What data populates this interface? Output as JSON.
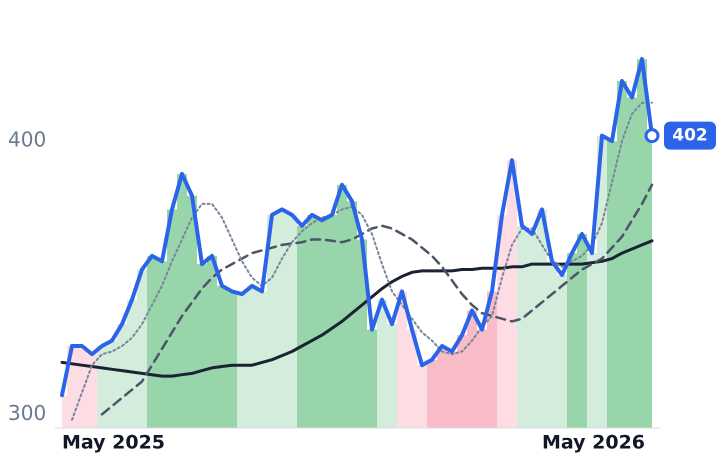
{
  "chart_data": {
    "type": "line",
    "categories": [
      "May 2025",
      null,
      null,
      null,
      null,
      null,
      null,
      null,
      null,
      null,
      null,
      null,
      null,
      null,
      null,
      null,
      null,
      null,
      null,
      null,
      null,
      null,
      null,
      null,
      null,
      null,
      null,
      null,
      null,
      null,
      null,
      null,
      null,
      null,
      null,
      null,
      null,
      null,
      null,
      null,
      null,
      null,
      null,
      null,
      null,
      null,
      null,
      null,
      "May 2026",
      null,
      null,
      null,
      null,
      null,
      null,
      null,
      null,
      null,
      null,
      null
    ],
    "series": [
      {
        "color": "#2b64e8",
        "style": "solid",
        "width": 4,
        "values": [
          307,
          325,
          325,
          322,
          325,
          327,
          333,
          342,
          353,
          358,
          356,
          375,
          388,
          380,
          355,
          358,
          347,
          345,
          344,
          347,
          345,
          373,
          375,
          373,
          369,
          373,
          371,
          373,
          384,
          378,
          364,
          331,
          342,
          333,
          345,
          331,
          318,
          320,
          325,
          323,
          329,
          338,
          331,
          345,
          373,
          393,
          369,
          366,
          375,
          356,
          351,
          359,
          366,
          359,
          402,
          400,
          422,
          416,
          430,
          402
        ]
      },
      {
        "color": "#7a8599",
        "style": "dotted",
        "width": 2,
        "values": [
          null,
          298,
          308,
          318,
          322,
          323,
          325,
          328,
          333,
          340,
          347,
          356,
          364,
          372,
          377,
          377,
          372,
          364,
          356,
          350,
          347,
          350,
          357,
          363,
          367,
          370,
          372,
          373,
          375,
          376,
          373,
          366,
          355,
          345,
          340,
          335,
          330,
          327,
          323,
          322,
          323,
          327,
          332,
          336,
          350,
          362,
          368,
          368,
          362,
          356,
          354,
          356,
          358,
          362,
          370,
          385,
          400,
          410,
          414,
          414
        ]
      },
      {
        "color": "#4a5568",
        "style": "dashed",
        "width": 2.5,
        "values": [
          null,
          null,
          null,
          null,
          300,
          303,
          306,
          309,
          312,
          318,
          324,
          330,
          336,
          341,
          346,
          350,
          353,
          355,
          357,
          359,
          360,
          361,
          362,
          362.5,
          363,
          364,
          364,
          363.5,
          363,
          364,
          366,
          368,
          369,
          368,
          366,
          364,
          361,
          358,
          354,
          349,
          344,
          340,
          337,
          336,
          335,
          334,
          335,
          338,
          341,
          344,
          347,
          350,
          353,
          355,
          357,
          361,
          365,
          371,
          377,
          384
        ]
      },
      {
        "color": "#1a2233",
        "style": "solid",
        "width": 3,
        "values": [
          319,
          318.5,
          318,
          317.5,
          317,
          316.5,
          316,
          315.5,
          315,
          314.5,
          314,
          314,
          314.5,
          315,
          316,
          317,
          317.5,
          318,
          318,
          318,
          319,
          320,
          321.5,
          323,
          325,
          327,
          329,
          331.5,
          334,
          337,
          340,
          343,
          346,
          348.5,
          350.5,
          352,
          352.5,
          352.5,
          352.5,
          352.5,
          353,
          353,
          353.5,
          353.5,
          353.5,
          354,
          354,
          355,
          355,
          355,
          355,
          355,
          355,
          355.5,
          356,
          357,
          359,
          360.5,
          362,
          363.5
        ]
      }
    ],
    "band_colors": [
      "#fddde3",
      "#fddde3",
      "#fddde3",
      "#fddde3",
      "#d4ecdc",
      "#d4ecdc",
      "#d4ecdc",
      "#d4ecdc",
      "#d4ecdc",
      "#98d5ab",
      "#98d5ab",
      "#98d5ab",
      "#98d5ab",
      "#98d5ab",
      "#98d5ab",
      "#98d5ab",
      "#98d5ab",
      "#98d5ab",
      "#d4ecdc",
      "#d4ecdc",
      "#d4ecdc",
      "#d4ecdc",
      "#d4ecdc",
      "#d4ecdc",
      "#98d5ab",
      "#98d5ab",
      "#98d5ab",
      "#98d5ab",
      "#98d5ab",
      "#98d5ab",
      "#98d5ab",
      "#98d5ab",
      "#d4ecdc",
      "#d4ecdc",
      "#fddde3",
      "#fddde3",
      "#fddde3",
      "#f7bcc7",
      "#f7bcc7",
      "#f7bcc7",
      "#f7bcc7",
      "#f7bcc7",
      "#f7bcc7",
      "#f7bcc7",
      "#fddde3",
      "#fddde3",
      "#d4ecdc",
      "#d4ecdc",
      "#d4ecdc",
      "#d4ecdc",
      "#d4ecdc",
      "#98d5ab",
      "#98d5ab",
      "#d4ecdc",
      "#d4ecdc",
      "#98d5ab",
      "#98d5ab",
      "#98d5ab",
      "#98d5ab",
      "#98d5ab"
    ],
    "ylim": [
      295,
      437
    ],
    "yticks": [
      300,
      400
    ],
    "grid": false
  }
}
